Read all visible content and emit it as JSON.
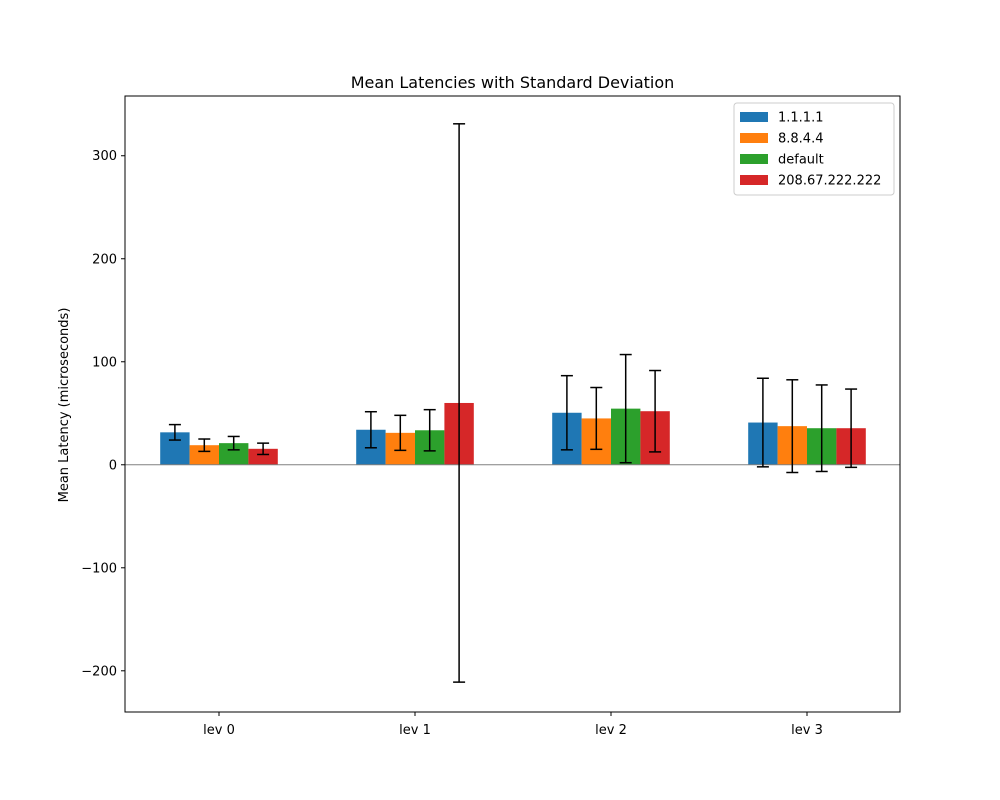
{
  "chart_data": {
    "type": "bar",
    "title": "Mean Latencies with Standard Deviation",
    "xlabel": "",
    "ylabel": "Mean Latency (microseconds)",
    "categories": [
      "lev 0",
      "lev 1",
      "lev 2",
      "lev 3"
    ],
    "series": [
      {
        "name": "1.1.1.1",
        "color": "#1f77b4",
        "values": [
          31.5,
          34.0,
          50.5,
          41.0
        ],
        "errors": [
          7.5,
          17.5,
          36.0,
          43.0
        ]
      },
      {
        "name": "8.8.4.4",
        "color": "#ff7f0e",
        "values": [
          19.0,
          31.0,
          45.0,
          37.5
        ],
        "errors": [
          6.0,
          17.0,
          30.0,
          45.0
        ]
      },
      {
        "name": "default",
        "color": "#2ca02c",
        "values": [
          21.0,
          33.5,
          54.5,
          35.5
        ],
        "errors": [
          6.5,
          20.0,
          52.5,
          42.0
        ]
      },
      {
        "name": "208.67.222.222",
        "color": "#d62728",
        "values": [
          15.5,
          60.0,
          52.0,
          35.5
        ],
        "errors": [
          5.5,
          271.0,
          39.5,
          38.0
        ]
      }
    ],
    "ylim": [
      -240,
      358
    ],
    "yticks": [
      -200,
      -100,
      0,
      100,
      200,
      300
    ],
    "ytick_labels": [
      "−200",
      "−100",
      "0",
      "100",
      "200",
      "300"
    ],
    "zero_line": true,
    "grid": false,
    "legend_position": "top-right"
  }
}
